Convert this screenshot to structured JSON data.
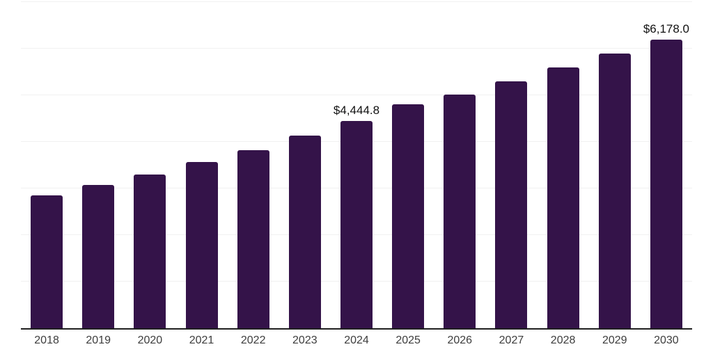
{
  "chart_data": {
    "type": "bar",
    "title": "",
    "xlabel": "",
    "ylabel": "",
    "categories": [
      "2018",
      "2019",
      "2020",
      "2021",
      "2022",
      "2023",
      "2024",
      "2025",
      "2026",
      "2027",
      "2028",
      "2029",
      "2030"
    ],
    "values": [
      2850,
      3070,
      3290,
      3560,
      3820,
      4120,
      4444.8,
      4800,
      5010,
      5290,
      5590,
      5880,
      6178.0
    ],
    "data_labels": {
      "2024": "$4,444.8",
      "2030": "$6,178.0"
    },
    "ylim": [
      0,
      7000
    ],
    "grid_step": 1000,
    "grid": true,
    "legend": false,
    "colors": {
      "bar": "#341349",
      "gridline": "#f1f1f1",
      "axis": "#1f1f1f",
      "tick_label": "#3d3d3d",
      "data_label": "#111111"
    }
  }
}
